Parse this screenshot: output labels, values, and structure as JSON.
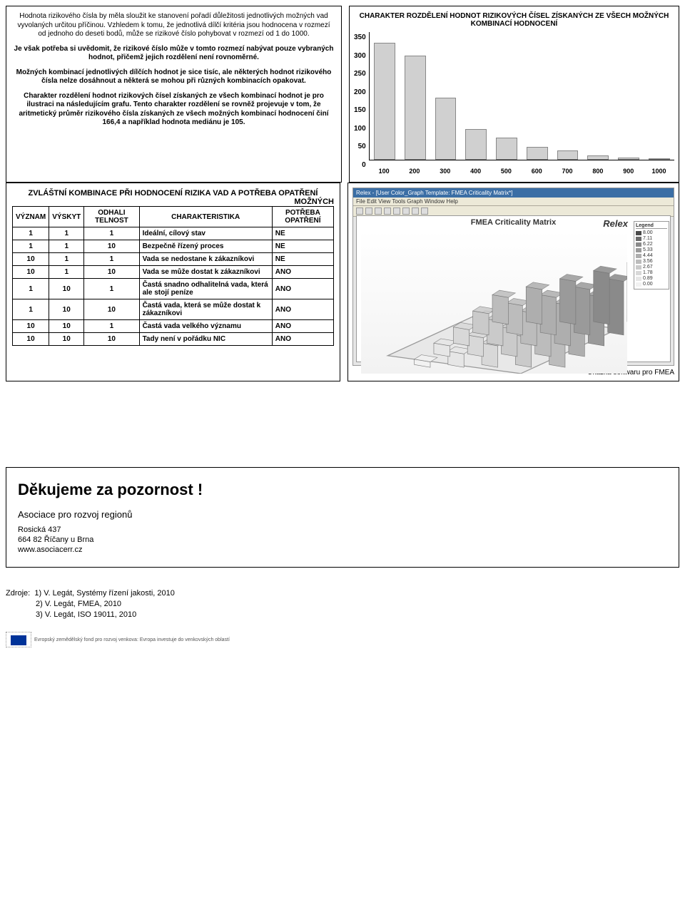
{
  "top": {
    "paragraphs": [
      {
        "bold": false,
        "text": "Hodnota rizikového čísla by měla sloužit ke stanovení pořadí důležitosti jednotlivých možných vad vyvolaných určitou příčinou. Vzhledem k tomu, že jednotlivá dílčí kritéria jsou hodnocena v rozmezí od jednoho do deseti bodů, může se rizikové číslo pohybovat v rozmezí od 1 do 1000."
      },
      {
        "bold": true,
        "text": "Je však potřeba si uvědomit, že rizikové číslo může v tomto rozmezí nabývat pouze vybraných hodnot, přičemž jejich rozdělení není rovnoměrné."
      },
      {
        "bold": true,
        "text": "Možných kombinací jednotlivých dílčích hodnot je sice tisíc, ale některých hodnot rizikového čísla nelze dosáhnout a některá se mohou při různých kombinacích opakovat."
      },
      {
        "bold": true,
        "text": "Charakter rozdělení hodnot rizikových čísel získaných ze všech kombinací hodnot je pro ilustraci na následujícím grafu. Tento charakter rozdělení se rovněž projevuje v tom, že aritmetický průměr rizikového čísla získaných ze všech možných kombinací hodnocení činí 166,4 a například hodnota mediánu je 105."
      }
    ]
  },
  "chart": {
    "title": "CHARAKTER ROZDĚLENÍ HODNOT RIZIKOVÝCH ČÍSEL ZÍSKANÝCH ZE VŠECH MOŽNÝCH KOMBINACÍ HODNOCENÍ",
    "ymax": 350,
    "ytick_step": 50,
    "yticks": [
      "350",
      "300",
      "250",
      "200",
      "150",
      "100",
      "50",
      "0"
    ],
    "categories": [
      "100",
      "200",
      "300",
      "400",
      "500",
      "600",
      "700",
      "800",
      "900",
      "1000"
    ],
    "values": [
      320,
      285,
      170,
      85,
      60,
      35,
      25,
      12,
      6,
      2
    ],
    "bar_fill": "#d0d0d0",
    "bar_border": "#888888",
    "axis_color": "#000000",
    "background_color": "#ffffff"
  },
  "combi": {
    "title_left": "ZVLÁŠTNÍ KOMBINACE PŘI HODNOCENÍ RIZIKA VAD A POTŘEBA OPATŘENÍ",
    "title_right": "MOŽNÝCH",
    "columns": [
      "VÝZNAM",
      "VÝSKYT",
      "ODHALI TELNOST",
      "CHARAKTERISTIKA",
      "POTŘEBA OPATŘENÍ"
    ],
    "rows": [
      [
        "1",
        "1",
        "1",
        "Ideální, cílový stav",
        "NE"
      ],
      [
        "1",
        "1",
        "10",
        "Bezpečně řízený proces",
        "NE"
      ],
      [
        "10",
        "1",
        "1",
        "Vada se nedostane k zákazníkovi",
        "NE"
      ],
      [
        "10",
        "1",
        "10",
        "Vada se může dostat k zákazníkovi",
        "ANO"
      ],
      [
        "1",
        "10",
        "1",
        "Častá snadno odhalitelná vada, která ale stojí peníze",
        "ANO"
      ],
      [
        "1",
        "10",
        "10",
        "Častá vada, která se může dostat k zákazníkovi",
        "ANO"
      ],
      [
        "10",
        "10",
        "1",
        "Častá vada velkého významu",
        "ANO"
      ],
      [
        "10",
        "10",
        "10",
        "Tady není v pořádku NIC",
        "ANO"
      ]
    ]
  },
  "software": {
    "titlebar": "Relex - [User Color_Graph Template: FMEA Criticality Matrix*]",
    "menu": "File  Edit  View  Tools  Graph  Window  Help",
    "graph_title": "FMEA Criticality Matrix",
    "logo": "Relex",
    "legend_title": "Legend",
    "legend": [
      {
        "color": "#4a4a4a",
        "label": "8.00"
      },
      {
        "color": "#6a6a6a",
        "label": "7.11"
      },
      {
        "color": "#8a8a8a",
        "label": "6.22"
      },
      {
        "color": "#9a9a9a",
        "label": "5.33"
      },
      {
        "color": "#aeaeae",
        "label": "4.44"
      },
      {
        "color": "#bcbcbc",
        "label": "3.56"
      },
      {
        "color": "#cacaca",
        "label": "2.67"
      },
      {
        "color": "#d8d8d8",
        "label": "1.78"
      },
      {
        "color": "#e6e6e6",
        "label": "0.89"
      },
      {
        "color": "#f2f2f2",
        "label": "0.00"
      }
    ],
    "caption": "Ukázka softwaru pro FMEA"
  },
  "thanks": {
    "title": "Děkujeme za pozornost !",
    "assoc": "Asociace pro rozvoj regionů",
    "addr1": "Rosická 437",
    "addr2": "664 82  Říčany u Brna",
    "web": "www.asociacerr.cz"
  },
  "sources": {
    "label": "Zdroje:",
    "items": [
      "1) V. Legát, Systémy řízení jakosti, 2010",
      "2) V. Legát, FMEA, 2010",
      "3) V. Legát, ISO 19011, 2010"
    ],
    "eu_caption": "Evropský zemědělský fond pro rozvoj venkova: Evropa investuje do venkovských oblastí"
  }
}
